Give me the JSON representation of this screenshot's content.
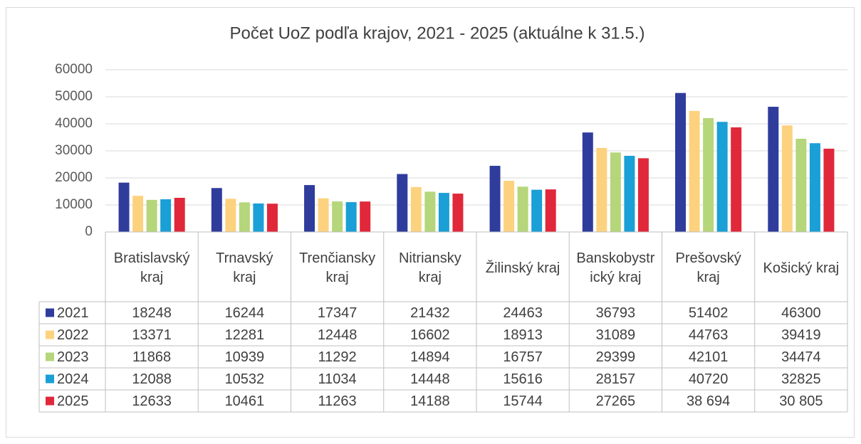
{
  "chart_data": {
    "type": "bar",
    "title": "Počet UoZ podľa krajov, 2021 - 2025 (aktuálne k 31.5.)",
    "categories": [
      "Bratislavský kraj",
      "Trnavský kraj",
      "Trenčiansky kraj",
      "Nitriansky kraj",
      "Žilinský kraj",
      "Banskobystrický kraj",
      "Prešovský kraj",
      "Košický kraj"
    ],
    "ylim": [
      0,
      60000
    ],
    "yticks": [
      0,
      10000,
      20000,
      30000,
      40000,
      50000,
      60000
    ],
    "grid": true,
    "series": [
      {
        "name": "2021",
        "color": "#2f3c9c",
        "values": [
          18248,
          16244,
          17347,
          21432,
          24463,
          36793,
          51402,
          46300
        ]
      },
      {
        "name": "2022",
        "color": "#fdd27f",
        "values": [
          13371,
          12281,
          12448,
          16602,
          18913,
          31089,
          44763,
          39419
        ]
      },
      {
        "name": "2023",
        "color": "#b5d67a",
        "values": [
          11868,
          10939,
          11292,
          14894,
          16757,
          29399,
          42101,
          34474
        ]
      },
      {
        "name": "2024",
        "color": "#1a9fd6",
        "values": [
          12088,
          10532,
          11034,
          14448,
          15616,
          28157,
          40720,
          32825
        ]
      },
      {
        "name": "2025",
        "color": "#e0283a",
        "values": [
          12633,
          10461,
          11263,
          14188,
          15744,
          27265,
          38694,
          30805
        ],
        "value_labels": [
          "12633",
          "10461",
          "11263",
          "14188",
          "15744",
          "27265",
          "38 694",
          "30 805"
        ]
      }
    ]
  }
}
